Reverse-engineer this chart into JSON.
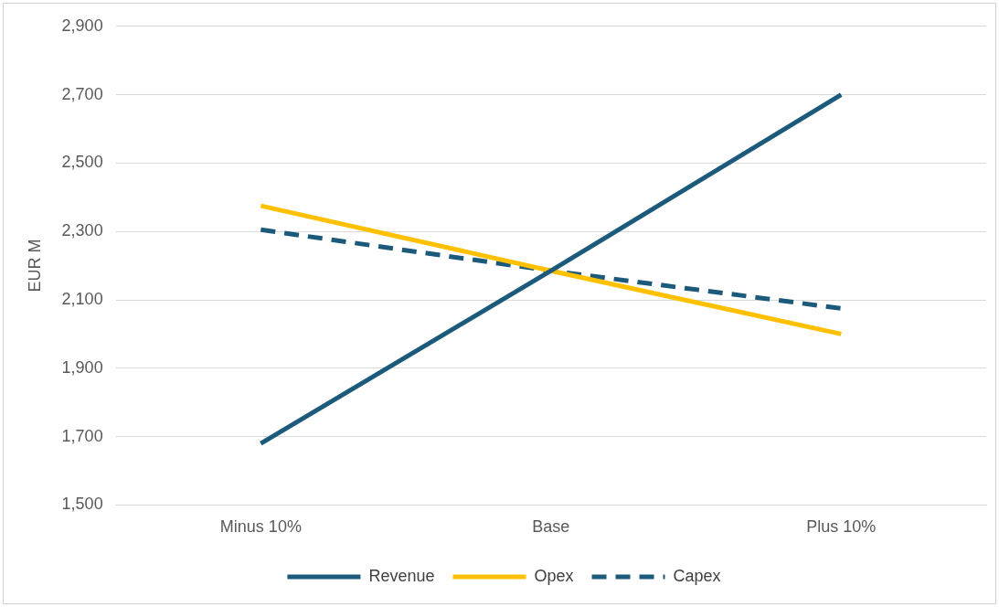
{
  "chart_data": {
    "type": "line",
    "ylabel": "EUR M",
    "categories": [
      "Minus 10%",
      "Base",
      "Plus 10%"
    ],
    "series": [
      {
        "name": "Revenue",
        "color": "#1b5a7a",
        "values": [
          1680,
          2185,
          2700
        ]
      },
      {
        "name": "Opex",
        "color": "#ffc000",
        "values": [
          2375,
          2185,
          2000
        ]
      },
      {
        "name": "Capex",
        "color": "#1b5a7a",
        "values": [
          2305,
          2185,
          2075
        ],
        "line_style": "dashed"
      }
    ],
    "ylim": [
      1500,
      2900
    ],
    "yticks": [
      {
        "value": 1500,
        "label": "1,500"
      },
      {
        "value": 1700,
        "label": "1,700"
      },
      {
        "value": 1900,
        "label": "1,900"
      },
      {
        "value": 2100,
        "label": "2,100"
      },
      {
        "value": 2300,
        "label": "2,300"
      },
      {
        "value": 2500,
        "label": "2,500"
      },
      {
        "value": 2700,
        "label": "2,700"
      },
      {
        "value": 2900,
        "label": "2,900"
      }
    ],
    "grid": "y",
    "legend": "bottom",
    "marker": "none",
    "line_style": "solid"
  }
}
